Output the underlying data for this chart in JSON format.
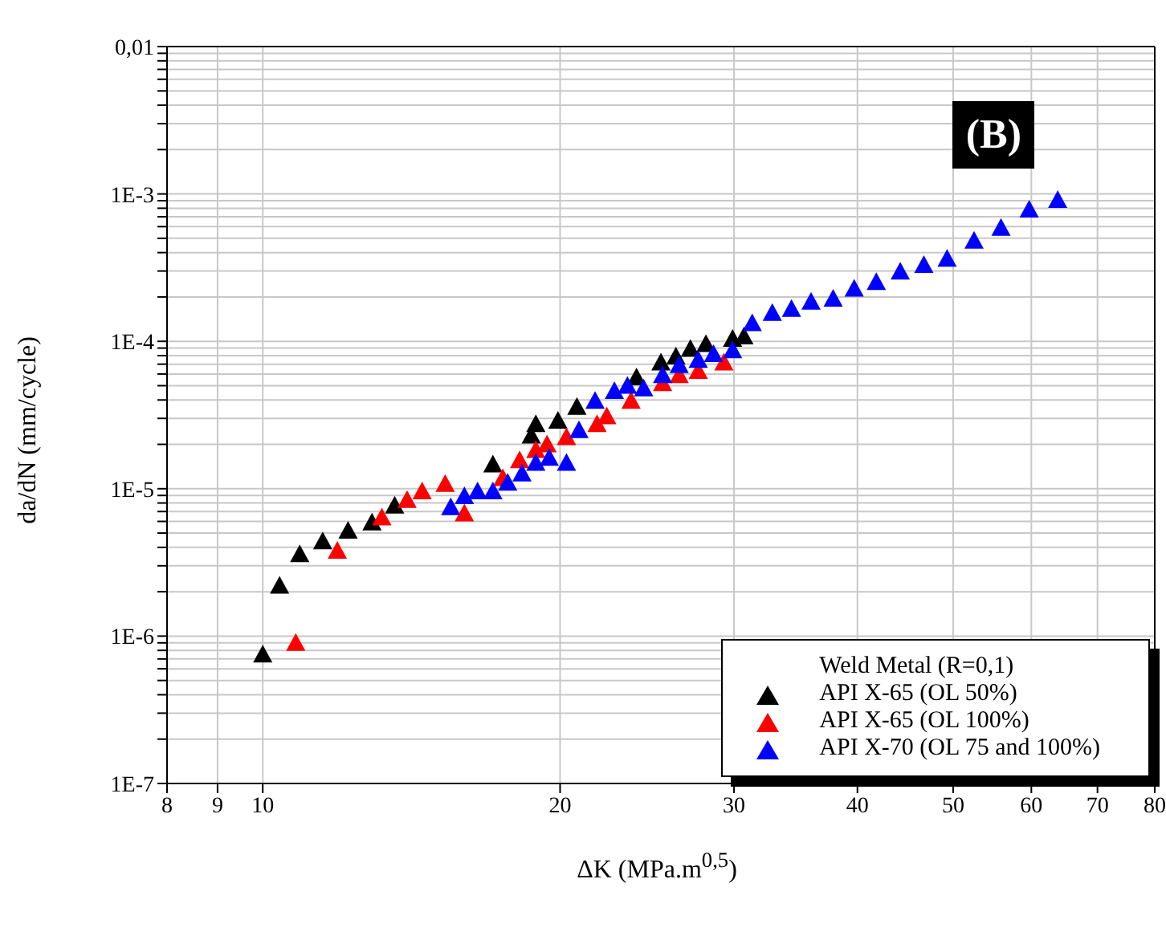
{
  "chart_data": {
    "type": "scatter",
    "xlabel": "ΔK (MPa.m$^{0,5}$)",
    "ylabel": "da/dN (mm/cycle)",
    "legend_title": "Weld Metal (R=0,1)",
    "annotations": [
      "(B)"
    ],
    "log": "xy",
    "grid": true,
    "legend": "bottom right",
    "marker": "triangle",
    "xlim": [
      8,
      80
    ],
    "xticks": [
      8,
      9,
      10,
      20,
      30,
      40,
      50,
      60,
      70,
      80
    ],
    "ylim": [
      1e-07,
      0.01
    ],
    "yticks": [
      {
        "value": 1e-07,
        "label": "1E-7"
      },
      {
        "value": 2e-07,
        "label": null
      },
      {
        "value": 3e-07,
        "label": null
      },
      {
        "value": 4e-07,
        "label": null
      },
      {
        "value": 5e-07,
        "label": null
      },
      {
        "value": 6e-07,
        "label": null
      },
      {
        "value": 7e-07,
        "label": null
      },
      {
        "value": 8e-07,
        "label": null
      },
      {
        "value": 9e-07,
        "label": null
      },
      {
        "value": 1e-06,
        "label": "1E-6"
      },
      {
        "value": 2e-06,
        "label": null
      },
      {
        "value": 3e-06,
        "label": null
      },
      {
        "value": 4e-06,
        "label": null
      },
      {
        "value": 5e-06,
        "label": null
      },
      {
        "value": 6e-06,
        "label": null
      },
      {
        "value": 7e-06,
        "label": null
      },
      {
        "value": 8e-06,
        "label": null
      },
      {
        "value": 9e-06,
        "label": null
      },
      {
        "value": 1e-05,
        "label": "1E-5"
      },
      {
        "value": 2e-05,
        "label": null
      },
      {
        "value": 3e-05,
        "label": null
      },
      {
        "value": 4e-05,
        "label": null
      },
      {
        "value": 5e-05,
        "label": null
      },
      {
        "value": 6e-05,
        "label": null
      },
      {
        "value": 7e-05,
        "label": null
      },
      {
        "value": 8e-05,
        "label": null
      },
      {
        "value": 9e-05,
        "label": null
      },
      {
        "value": 0.0001,
        "label": "1E-4"
      },
      {
        "value": 0.0002,
        "label": null
      },
      {
        "value": 0.0003,
        "label": null
      },
      {
        "value": 0.0004,
        "label": null
      },
      {
        "value": 0.0005,
        "label": null
      },
      {
        "value": 0.0006,
        "label": null
      },
      {
        "value": 0.0007,
        "label": null
      },
      {
        "value": 0.0008,
        "label": null
      },
      {
        "value": 0.0009,
        "label": null
      },
      {
        "value": 0.001,
        "label": "1E-3"
      },
      {
        "value": 0.002,
        "label": null
      },
      {
        "value": 0.003,
        "label": null
      },
      {
        "value": 0.004,
        "label": null
      },
      {
        "value": 0.005,
        "label": null
      },
      {
        "value": 0.006,
        "label": null
      },
      {
        "value": 0.007,
        "label": null
      },
      {
        "value": 0.008,
        "label": null
      },
      {
        "value": 0.009,
        "label": null
      },
      {
        "value": 0.01,
        "label": "0,01"
      }
    ],
    "series": [
      {
        "name": "API X-65 (OL 50%)",
        "color": "#000000",
        "x": [
          10.0,
          10.4,
          10.9,
          11.5,
          12.2,
          12.9,
          13.6,
          17.1,
          18.7,
          18.9,
          19.9,
          20.8,
          23.9,
          25.3,
          26.2,
          27.1,
          28.1,
          29.9,
          30.7
        ],
        "values": [
          7.5e-07,
          2.2e-06,
          3.6e-06,
          4.4e-06,
          5.2e-06,
          5.9e-06,
          7.7e-06,
          1.46e-05,
          2.3e-05,
          2.75e-05,
          2.9e-05,
          3.6e-05,
          5.7e-05,
          7.2e-05,
          7.9e-05,
          8.9e-05,
          9.6e-05,
          0.000104,
          0.000108
        ]
      },
      {
        "name": "API X-65 (OL 100%)",
        "color": "#ff0000",
        "x": [
          10.8,
          11.9,
          13.2,
          14.0,
          14.5,
          15.3,
          16.0,
          17.5,
          18.2,
          18.9,
          19.4,
          20.3,
          21.8,
          22.3,
          23.6,
          25.4,
          26.4,
          27.6,
          29.3
        ],
        "values": [
          9e-07,
          3.8e-06,
          6.4e-06,
          8.4e-06,
          9.6e-06,
          1.08e-05,
          6.8e-06,
          1.18e-05,
          1.56e-05,
          1.83e-05,
          2e-05,
          2.24e-05,
          2.75e-05,
          3.1e-05,
          3.95e-05,
          5.2e-05,
          5.9e-05,
          6.3e-05,
          7.2e-05
        ]
      },
      {
        "name": "API X-70 (OL 75 and 100%)",
        "color": "#0000ff",
        "x": [
          15.5,
          16.0,
          16.5,
          17.1,
          17.7,
          18.3,
          18.9,
          19.5,
          20.3,
          20.9,
          21.7,
          22.7,
          23.4,
          24.3,
          25.4,
          26.4,
          27.6,
          28.6,
          29.9,
          31.3,
          32.8,
          34.3,
          35.9,
          37.8,
          39.7,
          41.8,
          44.2,
          46.7,
          49.3,
          52.5,
          55.9,
          59.7,
          63.8
        ],
        "values": [
          7.5e-06,
          8.9e-06,
          9.6e-06,
          9.6e-06,
          1.1e-05,
          1.27e-05,
          1.5e-05,
          1.62e-05,
          1.5e-05,
          2.5e-05,
          3.95e-05,
          4.6e-05,
          5e-05,
          4.8e-05,
          5.9e-05,
          6.9e-05,
          7.5e-05,
          8.2e-05,
          8.7e-05,
          0.000133,
          0.000156,
          0.000166,
          0.000186,
          0.000195,
          0.000228,
          0.000253,
          0.000298,
          0.00033,
          0.000364,
          0.000483,
          0.00059,
          0.000785,
          0.00091
        ]
      }
    ]
  }
}
